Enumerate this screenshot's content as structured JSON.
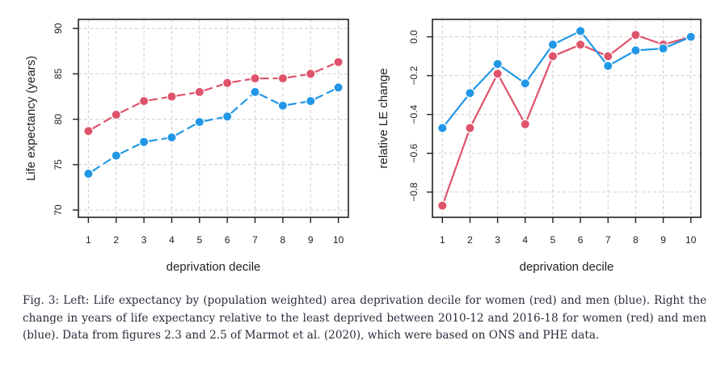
{
  "figure": {
    "caption": "Fig. 3: Left: Life expectancy by (population weighted) area deprivation decile for women (red) and men (blue). Right the change in years of life expectancy relative to the least deprived between 2010-12 and 2016-18 for women (red) and men (blue). Data from figures 2.3 and 2.5 of Marmot et al. (2020), which were based on ONS and PHE data."
  },
  "colors": {
    "women": "#DF536B",
    "men": "#2297E6",
    "grid": "#cfcfcf",
    "frame": "#222222"
  },
  "chart_data": [
    {
      "id": "left",
      "type": "line",
      "title": "",
      "xlabel": "deprivation decile",
      "ylabel": "Life expectancy (years)",
      "x": [
        1,
        2,
        3,
        4,
        5,
        6,
        7,
        8,
        9,
        10
      ],
      "xticks": [
        "1",
        "2",
        "3",
        "4",
        "5",
        "6",
        "7",
        "8",
        "9",
        "10"
      ],
      "yticks": [
        70,
        75,
        80,
        85,
        90
      ],
      "ytick_labels": [
        "70",
        "75",
        "80",
        "85",
        "90"
      ],
      "ylim": [
        69.2,
        91.0
      ],
      "xlim": [
        0.64,
        10.36
      ],
      "grid": true,
      "line_style": "dashed",
      "series": [
        {
          "name": "women (red)",
          "color_key": "women",
          "values": [
            78.7,
            80.5,
            82.0,
            82.5,
            83.0,
            84.0,
            84.5,
            84.5,
            85.0,
            86.3
          ]
        },
        {
          "name": "men (blue)",
          "color_key": "men",
          "values": [
            74.0,
            76.0,
            77.5,
            78.0,
            79.7,
            80.3,
            83.0,
            81.5,
            82.0,
            83.5
          ]
        }
      ]
    },
    {
      "id": "right",
      "type": "line",
      "title": "",
      "xlabel": "deprivation decile",
      "ylabel": "relative LE change",
      "x": [
        1,
        2,
        3,
        4,
        5,
        6,
        7,
        8,
        9,
        10
      ],
      "xticks": [
        "1",
        "2",
        "3",
        "4",
        "5",
        "6",
        "7",
        "8",
        "9",
        "10"
      ],
      "yticks": [
        0.0,
        -0.2,
        -0.4,
        -0.6,
        -0.8
      ],
      "ytick_labels": [
        "0.0",
        "−0.2",
        "−0.4",
        "−0.6",
        "−0.8"
      ],
      "ylim": [
        -0.93,
        0.09
      ],
      "xlim": [
        0.64,
        10.36
      ],
      "grid": true,
      "line_style": "solid",
      "series": [
        {
          "name": "women (red)",
          "color_key": "women",
          "values": [
            -0.87,
            -0.47,
            -0.19,
            -0.45,
            -0.1,
            -0.04,
            -0.1,
            0.01,
            -0.04,
            0.0
          ]
        },
        {
          "name": "men (blue)",
          "color_key": "men",
          "values": [
            -0.47,
            -0.29,
            -0.14,
            -0.24,
            -0.04,
            0.03,
            -0.15,
            -0.07,
            -0.06,
            0.0
          ]
        }
      ]
    }
  ]
}
